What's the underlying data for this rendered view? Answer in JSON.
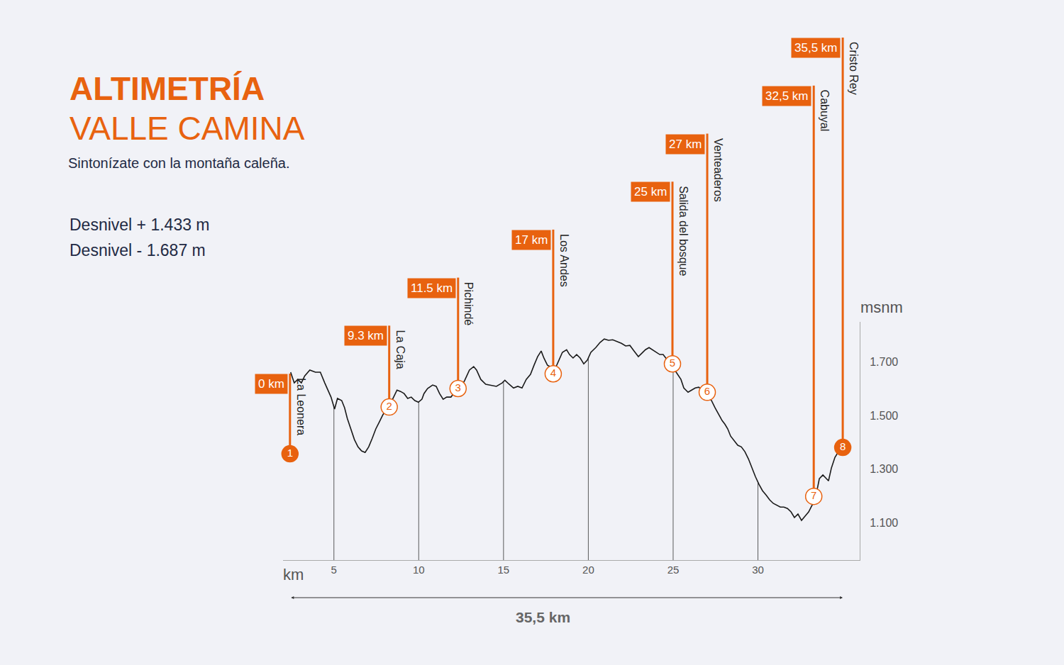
{
  "chart_data": {
    "type": "line",
    "title": "ALTIMETRÍA",
    "subtitle": "VALLE CAMINA",
    "tagline": "Sintonízate con la montaña caleña.",
    "notes": [
      "Desnivel + 1.433 m",
      "Desnivel - 1.687 m"
    ],
    "x_label": "km",
    "y_label": "msnm",
    "total_label": "35,5 km",
    "color": "#1a1a1a",
    "grid": true,
    "xlim": [
      2,
      36
    ],
    "ylim": [
      960,
      1850
    ],
    "xticks": [
      5,
      10,
      15,
      20,
      25,
      30
    ],
    "yticks": [
      {
        "value": 1100,
        "label": "1.100"
      },
      {
        "value": 1300,
        "label": "1.300"
      },
      {
        "value": 1500,
        "label": "1.500"
      },
      {
        "value": 1700,
        "label": "1.700"
      }
    ],
    "x": [
      2.45,
      2.66,
      2.87,
      3.08,
      3.28,
      3.58,
      3.91,
      4.2,
      4.46,
      4.62,
      4.83,
      5.04,
      5.21,
      5.46,
      5.63,
      5.79,
      6.0,
      6.21,
      6.42,
      6.63,
      6.84,
      7.05,
      7.26,
      7.47,
      7.68,
      7.89,
      8.1,
      8.31,
      8.52,
      8.72,
      8.93,
      9.14,
      9.35,
      9.56,
      9.77,
      9.98,
      10.19,
      10.31,
      10.52,
      10.82,
      11.03,
      11.23,
      11.44,
      11.65,
      11.9,
      12.15,
      12.41,
      12.7,
      12.99,
      13.24,
      13.41,
      13.66,
      13.95,
      14.25,
      14.58,
      14.92,
      15.08,
      15.33,
      15.59,
      15.84,
      16.09,
      16.34,
      16.59,
      16.8,
      17.01,
      17.22,
      17.38,
      17.59,
      17.85,
      18.01,
      18.22,
      18.47,
      18.72,
      18.89,
      19.1,
      19.31,
      19.52,
      19.73,
      19.94,
      20.15,
      20.44,
      20.69,
      20.94,
      21.19,
      21.44,
      21.69,
      21.95,
      22.2,
      22.45,
      22.7,
      22.95,
      23.16,
      23.37,
      23.58,
      23.79,
      24.0,
      24.21,
      24.41,
      24.62,
      24.83,
      25.04,
      25.25,
      25.46,
      25.63,
      25.88,
      26.09,
      26.3,
      26.51,
      26.72,
      27.01,
      27.26,
      27.47,
      27.68,
      27.89,
      28.05,
      28.22,
      28.39,
      28.6,
      28.81,
      29.02,
      29.23,
      29.44,
      29.64,
      29.85,
      30.06,
      30.27,
      30.48,
      30.69,
      30.9,
      31.11,
      31.32,
      31.53,
      31.74,
      31.95,
      32.15,
      32.36,
      32.57,
      32.78,
      32.99,
      33.2,
      33.41,
      33.62,
      33.83,
      34.04,
      34.16,
      34.33,
      34.54,
      34.75,
      35.0
    ],
    "values": [
      1662,
      1622,
      1635,
      1622,
      1648,
      1670,
      1662,
      1662,
      1622,
      1601,
      1569,
      1524,
      1564,
      1556,
      1529,
      1489,
      1450,
      1410,
      1383,
      1368,
      1362,
      1383,
      1415,
      1450,
      1476,
      1503,
      1524,
      1542,
      1569,
      1595,
      1590,
      1582,
      1564,
      1569,
      1556,
      1550,
      1561,
      1582,
      1601,
      1614,
      1609,
      1582,
      1561,
      1569,
      1569,
      1590,
      1601,
      1630,
      1670,
      1683,
      1670,
      1635,
      1617,
      1614,
      1609,
      1622,
      1632,
      1617,
      1603,
      1609,
      1603,
      1635,
      1654,
      1688,
      1720,
      1741,
      1715,
      1688,
      1680,
      1670,
      1701,
      1736,
      1746,
      1728,
      1715,
      1728,
      1715,
      1693,
      1707,
      1736,
      1754,
      1773,
      1786,
      1781,
      1783,
      1776,
      1770,
      1760,
      1762,
      1741,
      1720,
      1733,
      1746,
      1754,
      1746,
      1738,
      1728,
      1728,
      1709,
      1693,
      1675,
      1654,
      1635,
      1603,
      1587,
      1595,
      1603,
      1606,
      1595,
      1577,
      1556,
      1529,
      1503,
      1481,
      1468,
      1450,
      1423,
      1405,
      1389,
      1383,
      1365,
      1338,
      1304,
      1272,
      1243,
      1219,
      1203,
      1185,
      1172,
      1166,
      1158,
      1158,
      1153,
      1140,
      1119,
      1132,
      1108,
      1124,
      1140,
      1166,
      1198,
      1264,
      1278,
      1264,
      1256,
      1304,
      1344,
      1365,
      1381
    ],
    "waypoints": [
      {
        "number": 1,
        "name": "La Leonera",
        "km_label": "0 km",
        "x": 2.41,
        "y": 1357
      },
      {
        "number": 2,
        "name": "La Caja",
        "km_label": "9.3 km",
        "x": 8.26,
        "y": 1532
      },
      {
        "number": 3,
        "name": "Pichindé",
        "km_label": "11.5 km",
        "x": 12.32,
        "y": 1601
      },
      {
        "number": 4,
        "name": "Los Andes",
        "km_label": "17 km",
        "x": 17.93,
        "y": 1656
      },
      {
        "number": 5,
        "name": "Salida del bosque",
        "km_label": "25 km",
        "x": 24.96,
        "y": 1693
      },
      {
        "number": 6,
        "name": "Venteaderos",
        "km_label": "27 km",
        "x": 27.01,
        "y": 1587
      },
      {
        "number": 7,
        "name": "Cabuyal",
        "km_label": "32,5 km",
        "x": 33.29,
        "y": 1198
      },
      {
        "number": 8,
        "name": "Cristo Rey",
        "km_label": "35,5 km",
        "x": 35.0,
        "y": 1381
      }
    ]
  }
}
